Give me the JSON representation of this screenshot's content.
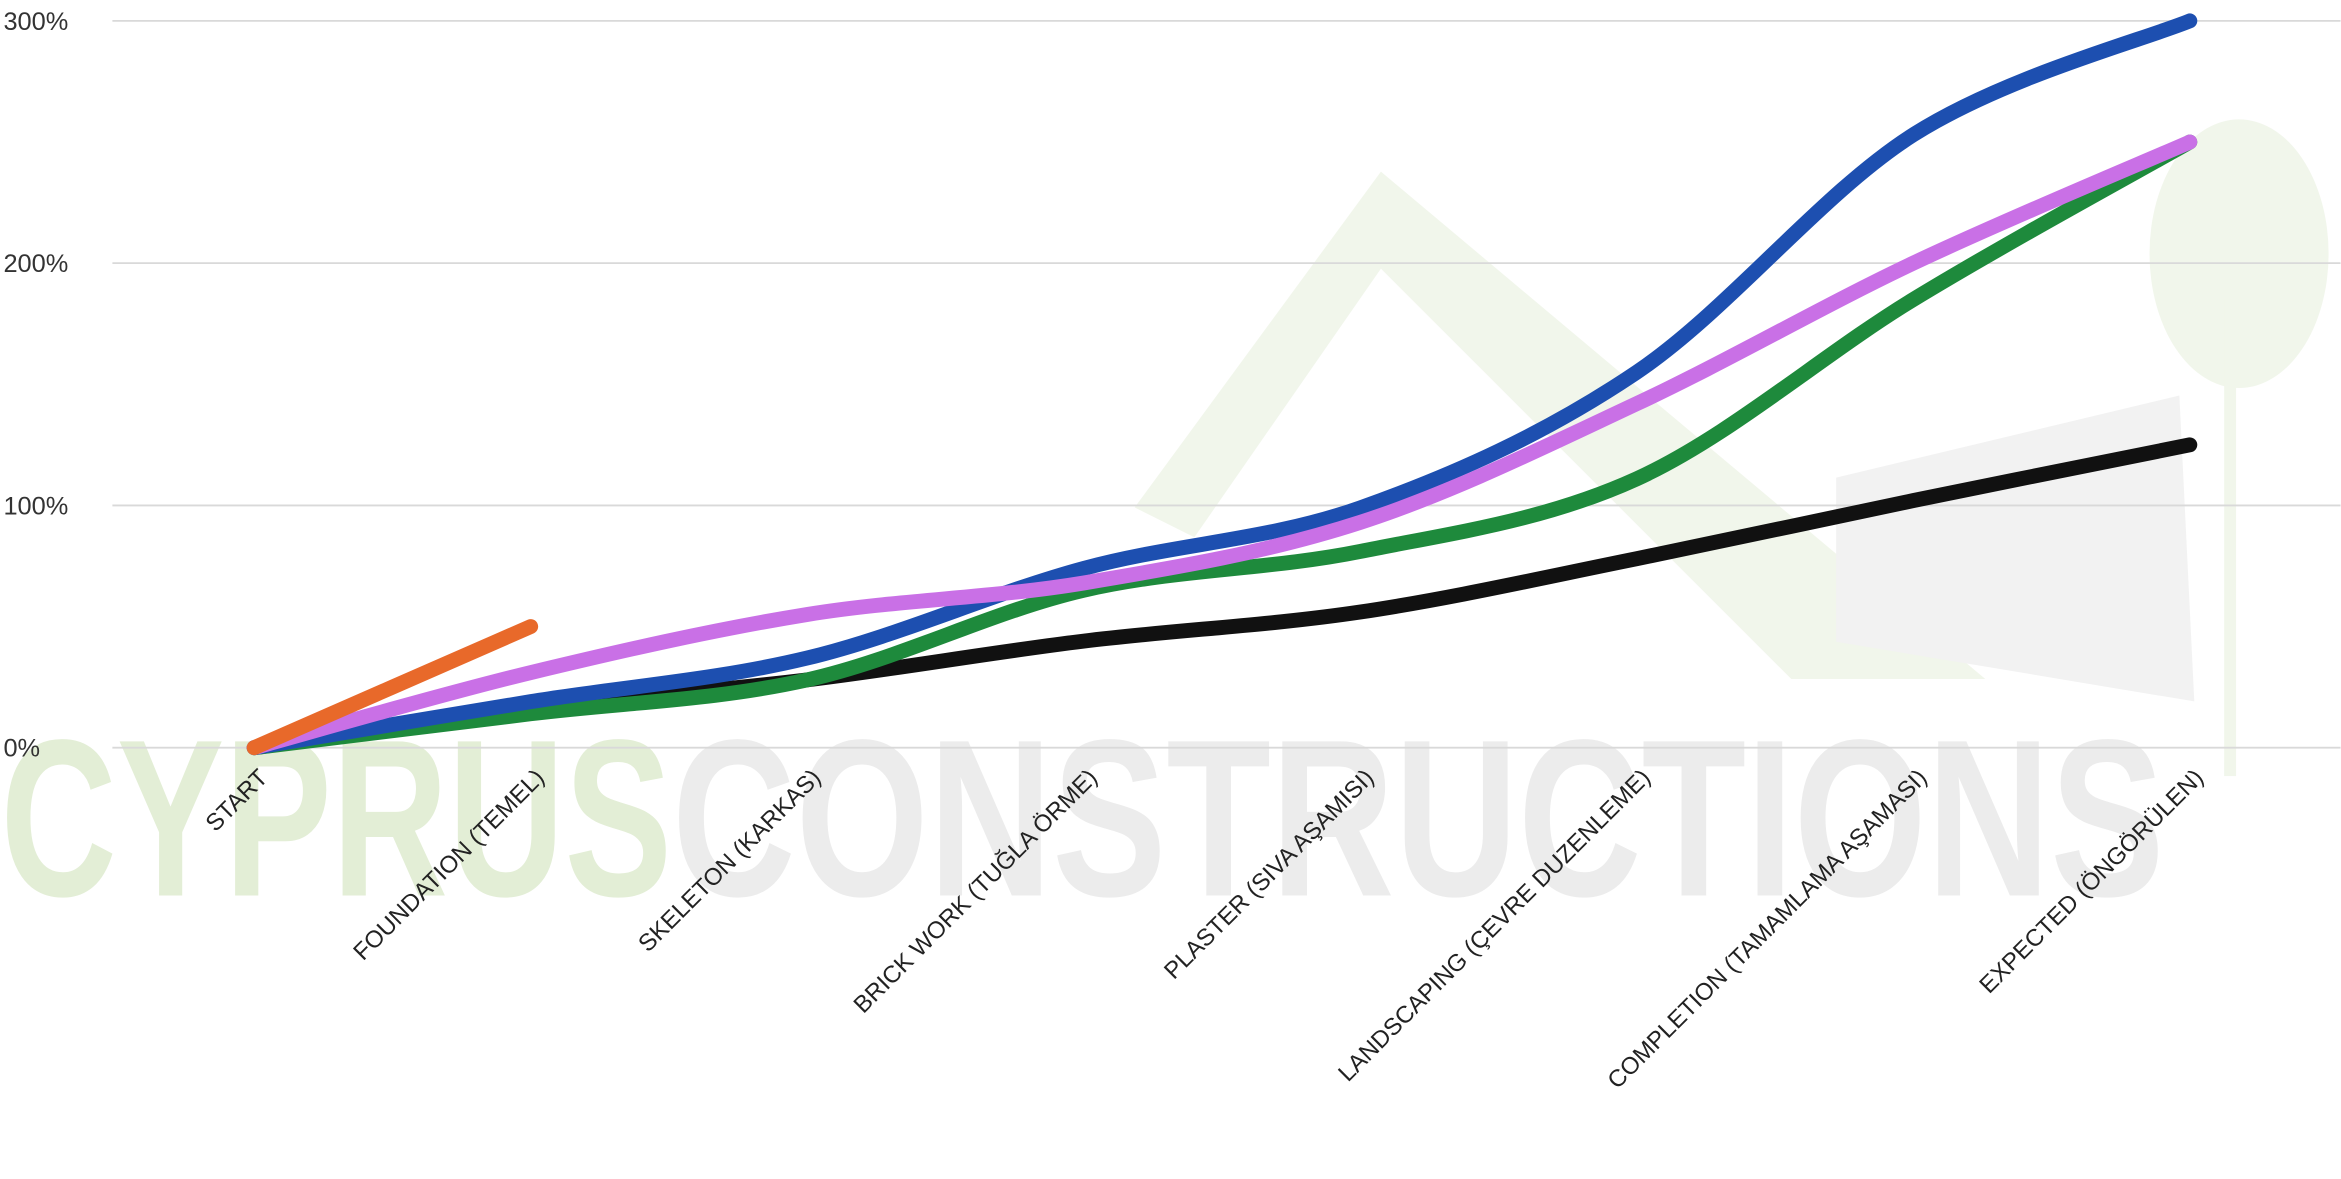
{
  "chart_data": {
    "type": "line",
    "watermark": [
      "CYPRUS",
      "CONSTRUCTIONS"
    ],
    "categories": [
      "START",
      "FOUNDATION (TEMEL)",
      "SKELETON (KARKAS)",
      "BRICK WORK (TUĞLA ÖRME)",
      "PLASTER  (SIVA AŞAMISI)",
      "LANDSCAPING (ÇEVRE DUZENLEME)",
      "COMPLETION (TAMAMLAMA AŞAMASI)",
      "EXPECTED (ÖNGÖRÜLEN)"
    ],
    "series": [
      {
        "color": "#111111",
        "values": [
          0,
          16,
          28,
          44,
          56,
          78,
          102,
          125
        ]
      },
      {
        "color": "#1e8a3c",
        "values": [
          0,
          14,
          28,
          65,
          81,
          111,
          185,
          250
        ]
      },
      {
        "color": "#1d4fb0",
        "values": [
          0,
          19,
          37,
          74,
          99,
          155,
          253,
          300
        ]
      },
      {
        "color": "#c970e6",
        "values": [
          0,
          31,
          55,
          68,
          93,
          142,
          200,
          250
        ]
      },
      {
        "color": "#e8692a",
        "values": [
          0,
          50,
          null,
          null,
          null,
          null,
          null,
          null
        ]
      }
    ],
    "ylim": [
      0,
      300
    ],
    "yticks": [
      {
        "value": 0,
        "label": "0%"
      },
      {
        "value": 100,
        "label": "100%"
      },
      {
        "value": 200,
        "label": "200%"
      },
      {
        "value": 300,
        "label": "300%"
      }
    ],
    "grid": true
  }
}
